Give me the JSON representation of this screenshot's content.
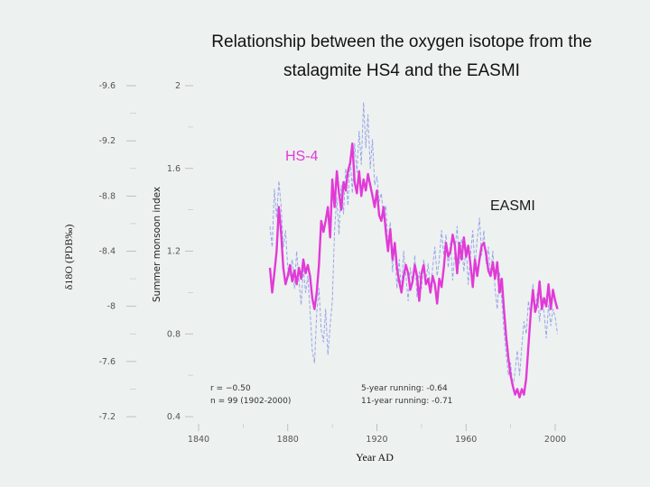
{
  "title_line1": "Relationship between the oxygen isotope from the",
  "title_line2": "stalagmite HS4 and the EASMI",
  "colors": {
    "hs4": "#e23ad6",
    "easmi": "#9aa6e6",
    "background": "#edf1f0",
    "text": "#222222"
  },
  "chart_data": {
    "type": "line",
    "xlabel": "Year AD",
    "xlim": [
      1840,
      2000
    ],
    "xticks": [
      "1840",
      "1880",
      "1920",
      "1960",
      "2000"
    ],
    "y_left_label": "δ18O (PDB‰)",
    "y_left_ticks": [
      "-9.6",
      "-9.2",
      "-8.8",
      "-8.4",
      "-8",
      "-7.6",
      "-7.2"
    ],
    "y_left_lim": [
      -7.2,
      -9.6
    ],
    "y_right_label": "Summer monsoon index",
    "y_right_ticks": [
      "2",
      "1.6",
      "1.2",
      "0.8",
      "0.4"
    ],
    "y_right_lim": [
      0.4,
      2.0
    ],
    "annotations": {
      "hs4_label": "HS-4",
      "easmi_label": "EASMI",
      "r_text": "r = −0.50",
      "n_text": "n = 99 (1902-2000)",
      "run5": "5-year running: -0.64",
      "run11": "11-year running: -0.71"
    },
    "series": [
      {
        "name": "HS-4",
        "axis": "left",
        "x": [
          1872,
          1873,
          1874,
          1875,
          1876,
          1877,
          1878,
          1879,
          1880,
          1881,
          1882,
          1883,
          1884,
          1885,
          1886,
          1887,
          1888,
          1889,
          1890,
          1891,
          1892,
          1893,
          1894,
          1895,
          1896,
          1897,
          1898,
          1899,
          1900,
          1901,
          1902,
          1903,
          1904,
          1905,
          1906,
          1907,
          1908,
          1909,
          1910,
          1911,
          1912,
          1913,
          1914,
          1915,
          1916,
          1917,
          1918,
          1919,
          1920,
          1921,
          1922,
          1923,
          1924,
          1925,
          1926,
          1927,
          1928,
          1929,
          1930,
          1931,
          1932,
          1933,
          1934,
          1935,
          1936,
          1937,
          1938,
          1939,
          1940,
          1941,
          1942,
          1943,
          1944,
          1945,
          1946,
          1947,
          1948,
          1949,
          1950,
          1951,
          1952,
          1953,
          1954,
          1955,
          1956,
          1957,
          1958,
          1959,
          1960,
          1961,
          1962,
          1963,
          1964,
          1965,
          1966,
          1967,
          1968,
          1969,
          1970,
          1971,
          1972,
          1973,
          1974,
          1975,
          1976,
          1977,
          1978,
          1979,
          1980,
          1981,
          1982,
          1983,
          1984,
          1985,
          1986,
          1987,
          1988,
          1989,
          1990,
          1991,
          1992,
          1993,
          1994,
          1995,
          1996,
          1997,
          1998,
          1999,
          2000,
          2001
        ],
        "values": [
          -8.28,
          -8.1,
          -8.24,
          -8.4,
          -8.72,
          -8.54,
          -8.28,
          -8.16,
          -8.22,
          -8.3,
          -8.18,
          -8.26,
          -8.16,
          -8.28,
          -8.2,
          -8.34,
          -8.24,
          -8.3,
          -8.22,
          -8.06,
          -7.98,
          -8.1,
          -8.3,
          -8.62,
          -8.54,
          -8.62,
          -8.72,
          -8.5,
          -8.92,
          -8.72,
          -8.98,
          -8.82,
          -8.7,
          -8.9,
          -8.84,
          -8.98,
          -9.04,
          -9.18,
          -8.9,
          -8.82,
          -8.98,
          -8.8,
          -8.92,
          -8.84,
          -8.96,
          -8.88,
          -8.8,
          -8.72,
          -8.84,
          -8.66,
          -8.62,
          -8.72,
          -8.54,
          -8.4,
          -8.56,
          -8.34,
          -8.46,
          -8.28,
          -8.18,
          -8.1,
          -8.22,
          -8.3,
          -8.24,
          -8.12,
          -8.18,
          -8.3,
          -8.22,
          -8.04,
          -8.24,
          -8.3,
          -8.16,
          -8.2,
          -8.1,
          -8.22,
          -8.16,
          -8.02,
          -8.2,
          -8.14,
          -8.28,
          -8.46,
          -8.36,
          -8.4,
          -8.52,
          -8.44,
          -8.24,
          -8.46,
          -8.34,
          -8.5,
          -8.36,
          -8.44,
          -8.3,
          -8.14,
          -8.34,
          -8.22,
          -8.34,
          -8.44,
          -8.46,
          -8.38,
          -8.26,
          -8.22,
          -8.32,
          -8.2,
          -8.32,
          -8.1,
          -8.2,
          -7.98,
          -7.78,
          -7.62,
          -7.5,
          -7.42,
          -7.36,
          -7.4,
          -7.34,
          -7.4,
          -7.36,
          -7.48,
          -7.72,
          -7.94,
          -8.12,
          -7.96,
          -8.02,
          -8.18,
          -7.98,
          -8.06,
          -8.0,
          -8.16,
          -7.98,
          -8.12,
          -8.04,
          -7.98
        ]
      },
      {
        "name": "EASMI",
        "axis": "right",
        "x": [
          1872,
          1873,
          1874,
          1875,
          1876,
          1877,
          1878,
          1879,
          1880,
          1881,
          1882,
          1883,
          1884,
          1885,
          1886,
          1887,
          1888,
          1889,
          1890,
          1891,
          1892,
          1893,
          1894,
          1895,
          1896,
          1897,
          1898,
          1899,
          1900,
          1901,
          1902,
          1903,
          1904,
          1905,
          1906,
          1907,
          1908,
          1909,
          1910,
          1911,
          1912,
          1913,
          1914,
          1915,
          1916,
          1917,
          1918,
          1919,
          1920,
          1921,
          1922,
          1923,
          1924,
          1925,
          1926,
          1927,
          1928,
          1929,
          1930,
          1931,
          1932,
          1933,
          1934,
          1935,
          1936,
          1937,
          1938,
          1939,
          1940,
          1941,
          1942,
          1943,
          1944,
          1945,
          1946,
          1947,
          1948,
          1949,
          1950,
          1951,
          1952,
          1953,
          1954,
          1955,
          1956,
          1957,
          1958,
          1959,
          1960,
          1961,
          1962,
          1963,
          1964,
          1965,
          1966,
          1967,
          1968,
          1969,
          1970,
          1971,
          1972,
          1973,
          1974,
          1975,
          1976,
          1977,
          1978,
          1979,
          1980,
          1981,
          1982,
          1983,
          1984,
          1985,
          1986,
          1987,
          1988,
          1989,
          1990,
          1991,
          1992,
          1993,
          1994,
          1995,
          1996,
          1997,
          1998,
          1999,
          2000,
          2001
        ],
        "values": [
          1.32,
          1.22,
          1.5,
          1.36,
          1.54,
          1.42,
          1.22,
          1.3,
          1.12,
          1.08,
          1.16,
          1.02,
          1.2,
          1.06,
          0.94,
          1.12,
          1.0,
          1.08,
          0.92,
          0.72,
          0.66,
          0.9,
          1.02,
          0.82,
          0.76,
          0.92,
          0.7,
          0.84,
          0.96,
          1.3,
          1.46,
          1.28,
          1.52,
          1.38,
          1.6,
          1.42,
          1.66,
          1.48,
          1.72,
          1.58,
          1.78,
          1.62,
          1.92,
          1.7,
          1.86,
          1.6,
          1.74,
          1.52,
          1.56,
          1.44,
          1.48,
          1.36,
          1.42,
          1.22,
          1.34,
          1.1,
          1.24,
          1.02,
          1.16,
          1.0,
          1.2,
          1.08,
          0.96,
          1.12,
          1.04,
          1.18,
          0.98,
          1.1,
          1.02,
          1.16,
          1.06,
          1.14,
          1.0,
          1.12,
          1.22,
          1.08,
          1.16,
          1.3,
          1.18,
          1.28,
          1.12,
          1.24,
          1.06,
          1.2,
          1.32,
          1.14,
          1.26,
          1.1,
          1.22,
          1.04,
          1.18,
          1.3,
          1.12,
          1.26,
          1.36,
          1.18,
          1.3,
          1.14,
          1.22,
          1.08,
          1.2,
          1.02,
          0.92,
          1.1,
          0.96,
          0.82,
          0.7,
          0.6,
          0.66,
          0.54,
          0.62,
          0.72,
          0.6,
          0.74,
          0.86,
          0.8,
          0.96,
          0.88,
          1.04,
          0.92,
          1.0,
          0.86,
          0.98,
          0.9,
          0.78,
          0.94,
          0.84,
          0.92,
          0.88,
          0.8
        ]
      }
    ]
  }
}
